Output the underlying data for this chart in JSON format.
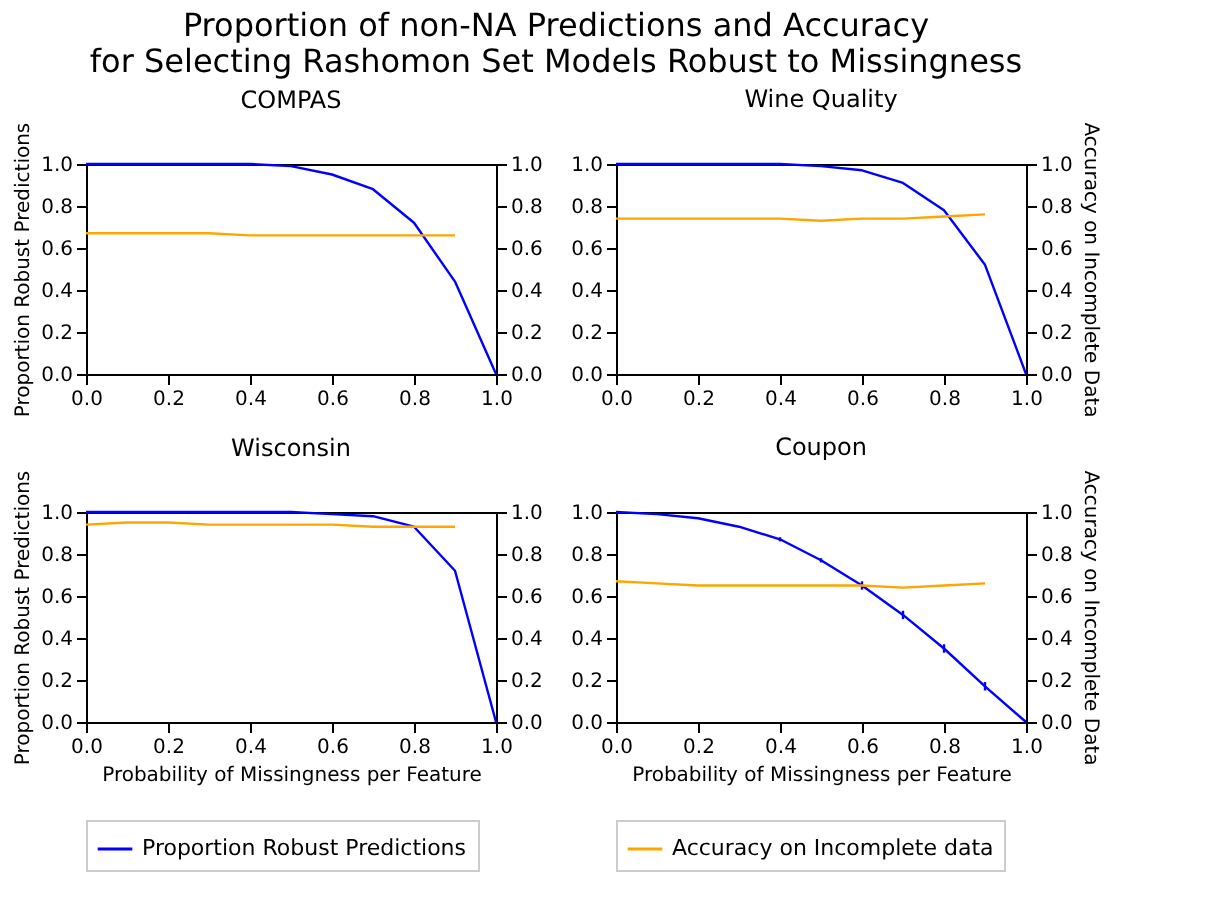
{
  "chart_data": [
    {
      "type": "line",
      "title": "Proportion of non-NA Predictions and Accuracy\nfor Selecting Rashomon Set Models Robust to Missingness",
      "subtitle": "COMPAS",
      "ylabel": "Proportion Robust Predictions",
      "xlim": [
        0,
        1
      ],
      "ylim": [
        0,
        1
      ],
      "y2lim": [
        0,
        1
      ],
      "xticks": [
        {
          "value": 0,
          "label": "0.0"
        },
        {
          "value": 0.2,
          "label": "0.2"
        },
        {
          "value": 0.4,
          "label": "0.4"
        },
        {
          "value": 0.6,
          "label": "0.6"
        },
        {
          "value": 0.8,
          "label": "0.8"
        },
        {
          "value": 1,
          "label": "1.0"
        }
      ],
      "yticks": [
        {
          "value": 0,
          "label": "0.0"
        },
        {
          "value": 0.2,
          "label": "0.2"
        },
        {
          "value": 0.4,
          "label": "0.4"
        },
        {
          "value": 0.6,
          "label": "0.6"
        },
        {
          "value": 0.8,
          "label": "0.8"
        },
        {
          "value": 1,
          "label": "1.0"
        }
      ],
      "y2ticks": [
        {
          "value": 0,
          "label": "0.0"
        },
        {
          "value": 0.2,
          "label": "0.2"
        },
        {
          "value": 0.4,
          "label": "0.4"
        },
        {
          "value": 0.6,
          "label": "0.6"
        },
        {
          "value": 0.8,
          "label": "0.8"
        },
        {
          "value": 1,
          "label": "1.0"
        }
      ],
      "grid": false,
      "series": [
        {
          "color": "#0000ff",
          "x": [
            0,
            0.1,
            0.2,
            0.3,
            0.4,
            0.5,
            0.6,
            0.7,
            0.8,
            0.9,
            1.0
          ],
          "values": [
            1.0,
            1.0,
            1.0,
            1.0,
            1.0,
            0.99,
            0.95,
            0.88,
            0.72,
            0.44,
            0.0
          ]
        },
        {
          "color": "#ffa500",
          "axis": "y2",
          "x": [
            0,
            0.1,
            0.2,
            0.3,
            0.4,
            0.5,
            0.6,
            0.7,
            0.8,
            0.9
          ],
          "values": [
            0.67,
            0.67,
            0.67,
            0.67,
            0.66,
            0.66,
            0.66,
            0.66,
            0.66,
            0.66
          ]
        }
      ]
    },
    {
      "type": "line",
      "subtitle": "Wine Quality",
      "y2label": "Accuracy on Incomplete Data",
      "xlim": [
        0,
        1
      ],
      "ylim": [
        0,
        1
      ],
      "y2lim": [
        0,
        1
      ],
      "xticks": [
        {
          "value": 0,
          "label": "0.0"
        },
        {
          "value": 0.2,
          "label": "0.2"
        },
        {
          "value": 0.4,
          "label": "0.4"
        },
        {
          "value": 0.6,
          "label": "0.6"
        },
        {
          "value": 0.8,
          "label": "0.8"
        },
        {
          "value": 1,
          "label": "1.0"
        }
      ],
      "yticks": [
        {
          "value": 0,
          "label": "0.0"
        },
        {
          "value": 0.2,
          "label": "0.2"
        },
        {
          "value": 0.4,
          "label": "0.4"
        },
        {
          "value": 0.6,
          "label": "0.6"
        },
        {
          "value": 0.8,
          "label": "0.8"
        },
        {
          "value": 1,
          "label": "1.0"
        }
      ],
      "y2ticks": [
        {
          "value": 0,
          "label": "0.0"
        },
        {
          "value": 0.2,
          "label": "0.2"
        },
        {
          "value": 0.4,
          "label": "0.4"
        },
        {
          "value": 0.6,
          "label": "0.6"
        },
        {
          "value": 0.8,
          "label": "0.8"
        },
        {
          "value": 1,
          "label": "1.0"
        }
      ],
      "grid": false,
      "series": [
        {
          "color": "#0000ff",
          "x": [
            0,
            0.1,
            0.2,
            0.3,
            0.4,
            0.5,
            0.6,
            0.7,
            0.8,
            0.9,
            1.0
          ],
          "values": [
            1.0,
            1.0,
            1.0,
            1.0,
            1.0,
            0.99,
            0.97,
            0.91,
            0.78,
            0.52,
            0.0
          ]
        },
        {
          "color": "#ffa500",
          "axis": "y2",
          "x": [
            0,
            0.1,
            0.2,
            0.3,
            0.4,
            0.5,
            0.6,
            0.7,
            0.8,
            0.9
          ],
          "values": [
            0.74,
            0.74,
            0.74,
            0.74,
            0.74,
            0.73,
            0.74,
            0.74,
            0.75,
            0.76
          ]
        }
      ]
    },
    {
      "type": "line",
      "subtitle": "Wisconsin",
      "ylabel": "Proportion Robust Predictions",
      "xlabel": "Probability of Missingness per Feature",
      "xlim": [
        0,
        1
      ],
      "ylim": [
        0,
        1
      ],
      "y2lim": [
        0,
        1
      ],
      "xticks": [
        {
          "value": 0,
          "label": "0.0"
        },
        {
          "value": 0.2,
          "label": "0.2"
        },
        {
          "value": 0.4,
          "label": "0.4"
        },
        {
          "value": 0.6,
          "label": "0.6"
        },
        {
          "value": 0.8,
          "label": "0.8"
        },
        {
          "value": 1,
          "label": "1.0"
        }
      ],
      "yticks": [
        {
          "value": 0,
          "label": "0.0"
        },
        {
          "value": 0.2,
          "label": "0.2"
        },
        {
          "value": 0.4,
          "label": "0.4"
        },
        {
          "value": 0.6,
          "label": "0.6"
        },
        {
          "value": 0.8,
          "label": "0.8"
        },
        {
          "value": 1,
          "label": "1.0"
        }
      ],
      "y2ticks": [
        {
          "value": 0,
          "label": "0.0"
        },
        {
          "value": 0.2,
          "label": "0.2"
        },
        {
          "value": 0.4,
          "label": "0.4"
        },
        {
          "value": 0.6,
          "label": "0.6"
        },
        {
          "value": 0.8,
          "label": "0.8"
        },
        {
          "value": 1,
          "label": "1.0"
        }
      ],
      "grid": false,
      "legend": "bottom",
      "series": [
        {
          "name": "Proportion Robust Predictions",
          "color": "#0000ff",
          "x": [
            0,
            0.1,
            0.2,
            0.3,
            0.4,
            0.5,
            0.6,
            0.7,
            0.8,
            0.9,
            1.0
          ],
          "values": [
            1.0,
            1.0,
            1.0,
            1.0,
            1.0,
            1.0,
            0.99,
            0.98,
            0.93,
            0.72,
            0.0
          ]
        },
        {
          "color": "#ffa500",
          "axis": "y2",
          "x": [
            0,
            0.1,
            0.2,
            0.3,
            0.4,
            0.5,
            0.6,
            0.7,
            0.8,
            0.9
          ],
          "values": [
            0.94,
            0.95,
            0.95,
            0.94,
            0.94,
            0.94,
            0.94,
            0.93,
            0.93,
            0.93
          ]
        }
      ]
    },
    {
      "type": "line",
      "subtitle": "Coupon",
      "y2label": "Accuracy on Incomplete Data",
      "xlabel": "Probability of Missingness per Feature",
      "xlim": [
        0,
        1
      ],
      "ylim": [
        0,
        1
      ],
      "y2lim": [
        0,
        1
      ],
      "xticks": [
        {
          "value": 0,
          "label": "0.0"
        },
        {
          "value": 0.2,
          "label": "0.2"
        },
        {
          "value": 0.4,
          "label": "0.4"
        },
        {
          "value": 0.6,
          "label": "0.6"
        },
        {
          "value": 0.8,
          "label": "0.8"
        },
        {
          "value": 1,
          "label": "1.0"
        }
      ],
      "yticks": [
        {
          "value": 0,
          "label": "0.0"
        },
        {
          "value": 0.2,
          "label": "0.2"
        },
        {
          "value": 0.4,
          "label": "0.4"
        },
        {
          "value": 0.6,
          "label": "0.6"
        },
        {
          "value": 0.8,
          "label": "0.8"
        },
        {
          "value": 1,
          "label": "1.0"
        }
      ],
      "y2ticks": [
        {
          "value": 0,
          "label": "0.0"
        },
        {
          "value": 0.2,
          "label": "0.2"
        },
        {
          "value": 0.4,
          "label": "0.4"
        },
        {
          "value": 0.6,
          "label": "0.6"
        },
        {
          "value": 0.8,
          "label": "0.8"
        },
        {
          "value": 1,
          "label": "1.0"
        }
      ],
      "grid": false,
      "legend": "bottom",
      "series": [
        {
          "color": "#0000ff",
          "x": [
            0,
            0.1,
            0.2,
            0.3,
            0.4,
            0.5,
            0.6,
            0.7,
            0.8,
            0.9,
            1.0
          ],
          "values": [
            1.0,
            0.99,
            0.97,
            0.93,
            0.87,
            0.77,
            0.65,
            0.51,
            0.35,
            0.17,
            0.0
          ],
          "errors": [
            null,
            null,
            null,
            null,
            0.01,
            0.01,
            0.02,
            0.02,
            0.02,
            0.02,
            null
          ]
        },
        {
          "name": "Accuracy on Incomplete data",
          "color": "#ffa500",
          "axis": "y2",
          "x": [
            0,
            0.1,
            0.2,
            0.3,
            0.4,
            0.5,
            0.6,
            0.7,
            0.8,
            0.9
          ],
          "values": [
            0.67,
            0.66,
            0.65,
            0.65,
            0.65,
            0.65,
            0.65,
            0.64,
            0.65,
            0.66
          ]
        }
      ]
    }
  ]
}
